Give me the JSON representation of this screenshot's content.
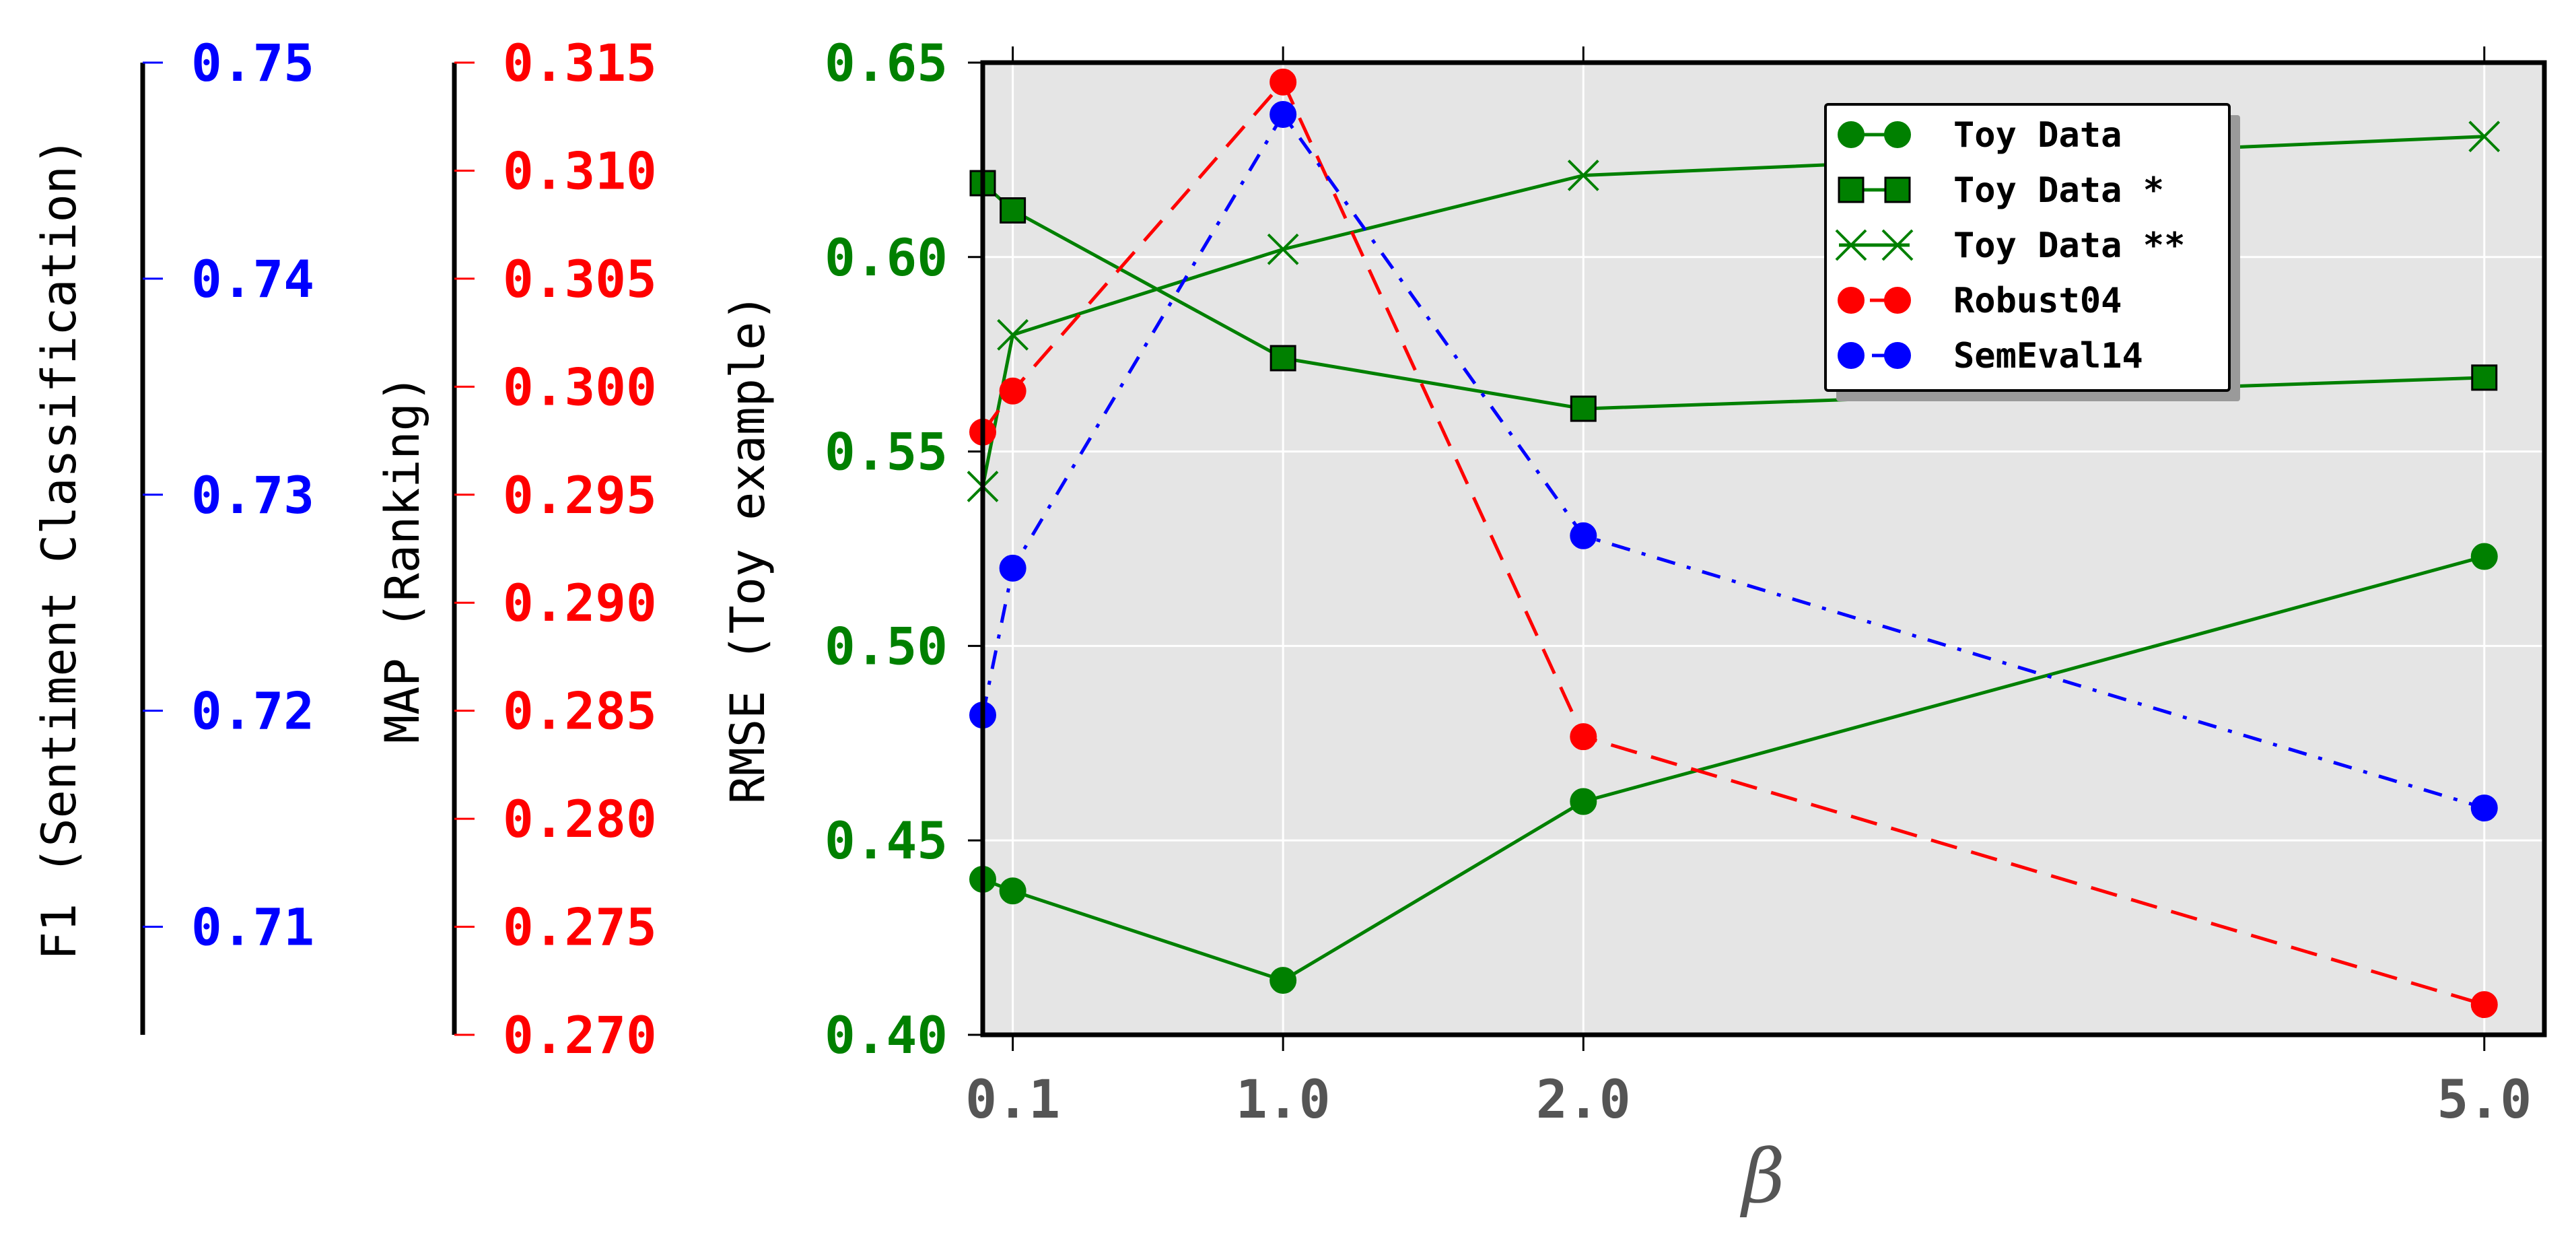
{
  "chart_data": {
    "type": "line",
    "xlabel": "β",
    "x_ticks": [
      "0.1",
      "1.0",
      "2.0",
      "5.0"
    ],
    "x_tick_values": [
      0.1,
      1.0,
      2.0,
      5.0
    ],
    "xlim": [
      0.0,
      5.2
    ],
    "grid": true,
    "legend_position": "top-right",
    "axes": {
      "rmse": {
        "label": "RMSE (Toy example)",
        "color": "#008000",
        "ylim": [
          0.4,
          0.65
        ],
        "ticks": [
          "0.40",
          "0.45",
          "0.50",
          "0.55",
          "0.60",
          "0.65"
        ],
        "tick_values": [
          0.4,
          0.45,
          0.5,
          0.55,
          0.6,
          0.65
        ]
      },
      "map": {
        "label": "MAP (Ranking)",
        "color": "#ff0000",
        "ylim": [
          0.27,
          0.315
        ],
        "ticks": [
          "0.270",
          "0.275",
          "0.280",
          "0.285",
          "0.290",
          "0.295",
          "0.300",
          "0.305",
          "0.310",
          "0.315"
        ],
        "tick_values": [
          0.27,
          0.275,
          0.28,
          0.285,
          0.29,
          0.295,
          0.3,
          0.305,
          0.31,
          0.315
        ]
      },
      "f1": {
        "label": "F1 (Sentiment Classification)",
        "color": "#0000ff",
        "ylim": [
          0.705,
          0.75
        ],
        "ticks": [
          "0.71",
          "0.72",
          "0.73",
          "0.74",
          "0.75"
        ],
        "tick_values": [
          0.71,
          0.72,
          0.73,
          0.74,
          0.75
        ]
      }
    },
    "series": [
      {
        "name": "Toy Data",
        "axis": "rmse",
        "color": "#008000",
        "marker": "circle",
        "line": "solid",
        "x": [
          0.0,
          0.1,
          1.0,
          2.0,
          5.0
        ],
        "y": [
          0.44,
          0.437,
          0.414,
          0.46,
          0.523
        ]
      },
      {
        "name": "Toy Data *",
        "axis": "rmse",
        "color": "#008000",
        "marker": "square",
        "line": "solid",
        "x": [
          0.0,
          0.1,
          1.0,
          2.0,
          5.0
        ],
        "y": [
          0.619,
          0.612,
          0.574,
          0.561,
          0.569
        ]
      },
      {
        "name": "Toy Data **",
        "axis": "rmse",
        "color": "#008000",
        "marker": "x",
        "line": "solid",
        "x": [
          0.0,
          0.1,
          1.0,
          2.0,
          5.0
        ],
        "y": [
          0.541,
          0.58,
          0.602,
          0.621,
          0.631
        ]
      },
      {
        "name": "Robust04",
        "axis": "map",
        "color": "#ff0000",
        "marker": "circle",
        "line": "dashed",
        "x": [
          0.0,
          0.1,
          1.0,
          2.0,
          5.0
        ],
        "y": [
          0.2979,
          0.2998,
          0.3141,
          0.2838,
          0.2714
        ]
      },
      {
        "name": "SemEval14",
        "axis": "f1",
        "color": "#0000ff",
        "marker": "circle",
        "line": "dashdot",
        "x": [
          0.0,
          0.1,
          1.0,
          2.0,
          5.0
        ],
        "y": [
          0.7198,
          0.7266,
          0.7476,
          0.7281,
          0.7155
        ]
      }
    ]
  }
}
